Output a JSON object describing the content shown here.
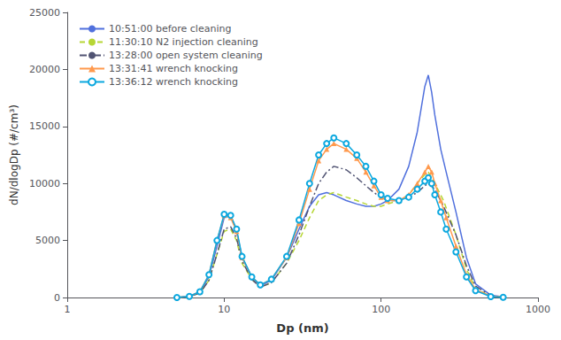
{
  "chart_data": {
    "type": "line",
    "xlabel": "Dp (nm)",
    "ylabel": "dN/dlogDp (#/cm³)",
    "log": "x",
    "xlim": [
      1,
      1000
    ],
    "xticks": [
      1,
      10,
      100,
      1000
    ],
    "ylim": [
      0,
      25000
    ],
    "yticks": [
      0,
      5000,
      10000,
      15000,
      20000,
      25000
    ],
    "grid": false,
    "legend": "upper left",
    "series": [
      {
        "name": "10:51:00 before cleaning",
        "line_style": "solid",
        "x": [
          5,
          6,
          7,
          8,
          9,
          10,
          11,
          12,
          13,
          15,
          17,
          20,
          25,
          30,
          35,
          40,
          45,
          50,
          60,
          70,
          80,
          90,
          100,
          110,
          130,
          150,
          170,
          190,
          200,
          210,
          220,
          240,
          260,
          300,
          350,
          400,
          500,
          600
        ],
        "values": [
          0,
          100,
          500,
          1800,
          4500,
          7000,
          7200,
          5800,
          3500,
          1800,
          1000,
          1500,
          3500,
          6000,
          8000,
          9000,
          9200,
          9000,
          8500,
          8200,
          8000,
          8000,
          8200,
          8500,
          9500,
          11500,
          14500,
          18500,
          19500,
          18000,
          16000,
          13000,
          11000,
          7500,
          3500,
          1200,
          200,
          50
        ]
      },
      {
        "name": "11:30:10 N2 injection cleaning",
        "line_style": "dashed",
        "x": [
          5,
          6,
          7,
          8,
          9,
          10,
          11,
          12,
          13,
          15,
          17,
          20,
          25,
          30,
          35,
          40,
          45,
          50,
          60,
          70,
          80,
          90,
          100,
          110,
          130,
          150,
          170,
          190,
          200,
          220,
          250,
          300,
          350,
          400,
          500,
          600
        ],
        "values": [
          0,
          80,
          400,
          1500,
          3800,
          5800,
          6000,
          5000,
          3000,
          1600,
          900,
          1300,
          3000,
          5000,
          7000,
          8500,
          9000,
          9200,
          8800,
          8500,
          8200,
          8000,
          8000,
          8200,
          8500,
          9000,
          10000,
          10800,
          11000,
          10000,
          8500,
          5500,
          2500,
          800,
          100,
          30
        ]
      },
      {
        "name": "13:28:00 open system cleaning",
        "line_style": "dashdot",
        "x": [
          5,
          6,
          7,
          8,
          9,
          10,
          11,
          12,
          13,
          15,
          17,
          20,
          25,
          30,
          35,
          40,
          45,
          50,
          60,
          70,
          80,
          90,
          100,
          110,
          130,
          150,
          170,
          190,
          200,
          220,
          250,
          300,
          350,
          400,
          500,
          600
        ],
        "values": [
          0,
          80,
          400,
          1500,
          3800,
          6000,
          6200,
          5200,
          3200,
          1600,
          900,
          1300,
          3000,
          5500,
          8000,
          10000,
          11000,
          11500,
          11200,
          10500,
          9800,
          9200,
          8800,
          8500,
          8500,
          8800,
          9200,
          9800,
          10000,
          9500,
          8000,
          5500,
          2800,
          1000,
          150,
          30
        ]
      },
      {
        "name": "13:31:41 wrench knocking",
        "line_style": "solid",
        "marker": "triangle",
        "x": [
          5,
          6,
          7,
          8,
          9,
          10,
          11,
          12,
          13,
          15,
          17,
          20,
          25,
          30,
          35,
          40,
          45,
          50,
          60,
          70,
          80,
          90,
          100,
          110,
          130,
          150,
          170,
          190,
          200,
          210,
          220,
          240,
          260,
          300,
          350,
          400,
          500,
          600
        ],
        "values": [
          0,
          100,
          500,
          2000,
          5000,
          7200,
          7000,
          5800,
          3500,
          1800,
          1100,
          1600,
          3500,
          6500,
          9500,
          12000,
          13000,
          13500,
          13000,
          12200,
          11000,
          9800,
          8800,
          8500,
          8500,
          9000,
          10000,
          11000,
          11500,
          11000,
          10000,
          8500,
          7000,
          4500,
          2000,
          700,
          100,
          30
        ]
      },
      {
        "name": "13:36:12 wrench knocking",
        "line_style": "solid",
        "marker": "circle",
        "x": [
          5,
          6,
          7,
          8,
          9,
          10,
          11,
          12,
          13,
          15,
          17,
          20,
          25,
          30,
          35,
          40,
          45,
          50,
          60,
          70,
          80,
          90,
          100,
          110,
          130,
          150,
          170,
          190,
          200,
          210,
          220,
          240,
          260,
          300,
          350,
          400,
          500,
          600
        ],
        "values": [
          0,
          100,
          500,
          2000,
          5000,
          7300,
          7200,
          6000,
          3600,
          1800,
          1100,
          1600,
          3600,
          6800,
          10000,
          12500,
          13500,
          14000,
          13500,
          12500,
          11500,
          10200,
          9000,
          8700,
          8500,
          8800,
          9500,
          10200,
          10500,
          10000,
          9000,
          7500,
          6000,
          4000,
          1800,
          600,
          80,
          20
        ]
      }
    ]
  }
}
